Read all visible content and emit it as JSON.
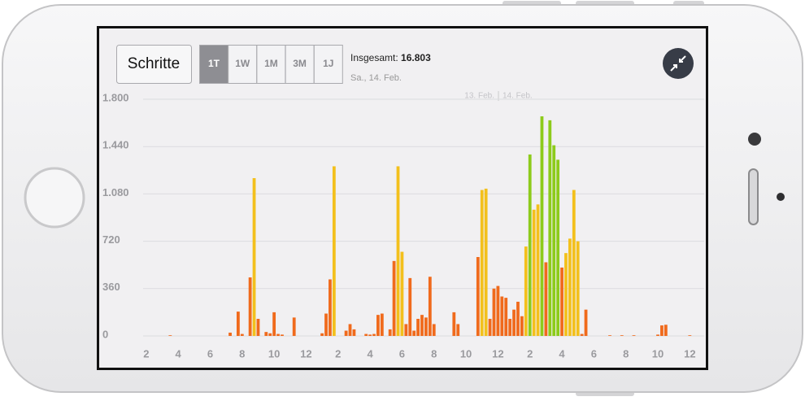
{
  "header": {
    "metric_button": "Schritte",
    "ranges": [
      "1T",
      "1W",
      "1M",
      "3M",
      "1J"
    ],
    "total_label": "Insgesamt:",
    "total_value": "16.803",
    "date": "Sa., 14. Feb."
  },
  "chart_data": {
    "type": "bar",
    "day_labels": [
      "13. Feb.",
      "14. Feb."
    ],
    "x": [
      3.5,
      7.25,
      7.75,
      8.0,
      8.5,
      8.75,
      9.0,
      9.5,
      9.75,
      10.0,
      10.25,
      10.5,
      11.25,
      13.0,
      13.25,
      13.5,
      13.75,
      14.5,
      14.75,
      15.0,
      15.75,
      16.0,
      16.25,
      16.5,
      16.75,
      17.25,
      17.5,
      17.75,
      18.0,
      18.25,
      18.5,
      18.75,
      19.0,
      19.25,
      19.5,
      19.75,
      20.0,
      21.25,
      21.5,
      22.75,
      23.0,
      23.25,
      23.5,
      23.75,
      24.0,
      24.25,
      24.5,
      24.75,
      25.0,
      25.25,
      25.5,
      25.75,
      26.0,
      26.25,
      26.5,
      26.75,
      27.0,
      27.25,
      27.5,
      27.75,
      28.0,
      28.25,
      28.5,
      28.75,
      29.0,
      29.25,
      29.5,
      31.0,
      31.75,
      32.5,
      34.0,
      34.25,
      34.5,
      36.0
    ],
    "values": [
      5,
      25,
      185,
      15,
      445,
      1200,
      130,
      30,
      20,
      180,
      15,
      10,
      140,
      20,
      170,
      430,
      1290,
      40,
      90,
      50,
      15,
      10,
      15,
      160,
      170,
      50,
      570,
      1290,
      640,
      90,
      440,
      40,
      130,
      160,
      140,
      450,
      90,
      180,
      90,
      600,
      1110,
      1120,
      130,
      360,
      380,
      300,
      290,
      130,
      200,
      260,
      150,
      680,
      1380,
      960,
      1000,
      1670,
      560,
      1640,
      1450,
      1340,
      520,
      630,
      740,
      1110,
      720,
      15,
      200,
      5,
      5,
      5,
      10,
      80,
      85,
      5
    ],
    "colors": [
      "#f06a1c",
      "#f06a1c",
      "#f06a1c",
      "#f06a1c",
      "#f06a1c",
      "#f3c01c",
      "#f06a1c",
      "#f06a1c",
      "#f06a1c",
      "#f06a1c",
      "#f06a1c",
      "#f06a1c",
      "#f06a1c",
      "#f06a1c",
      "#f06a1c",
      "#f06a1c",
      "#f3c01c",
      "#f06a1c",
      "#f06a1c",
      "#f06a1c",
      "#f06a1c",
      "#f06a1c",
      "#f06a1c",
      "#f06a1c",
      "#f06a1c",
      "#f06a1c",
      "#f06a1c",
      "#f3c01c",
      "#f3c01c",
      "#f06a1c",
      "#f06a1c",
      "#f06a1c",
      "#f06a1c",
      "#f06a1c",
      "#f06a1c",
      "#f06a1c",
      "#f06a1c",
      "#f06a1c",
      "#f06a1c",
      "#f06a1c",
      "#f3c01c",
      "#f3c01c",
      "#f06a1c",
      "#f06a1c",
      "#f06a1c",
      "#f06a1c",
      "#f06a1c",
      "#f06a1c",
      "#f06a1c",
      "#f06a1c",
      "#f06a1c",
      "#f3c01c",
      "#8dcb1b",
      "#f3c01c",
      "#f3c01c",
      "#8dcb1b",
      "#f06a1c",
      "#8dcb1b",
      "#8dcb1b",
      "#8dcb1b",
      "#f06a1c",
      "#f3c01c",
      "#f3c01c",
      "#f3c01c",
      "#f3c01c",
      "#f06a1c",
      "#f06a1c",
      "#f06a1c",
      "#f06a1c",
      "#f06a1c",
      "#f06a1c",
      "#f06a1c",
      "#f06a1c",
      "#f06a1c"
    ],
    "xlim": [
      1.5,
      37
    ],
    "xticks": [
      2,
      4,
      6,
      8,
      10,
      12,
      {
        "value": 14,
        "label": "2"
      },
      {
        "value": 16,
        "label": "4"
      },
      {
        "value": 18,
        "label": "6"
      },
      {
        "value": 20,
        "label": "8"
      },
      {
        "value": 22,
        "label": "10"
      },
      {
        "value": 24,
        "label": "12"
      },
      {
        "value": 26,
        "label": "2"
      },
      {
        "value": 28,
        "label": "4"
      },
      {
        "value": 30,
        "label": "6"
      },
      {
        "value": 32,
        "label": "8"
      },
      {
        "value": 34,
        "label": "10"
      },
      {
        "value": 36,
        "label": "12"
      }
    ],
    "ylim": [
      0,
      1800
    ],
    "yticks": [
      0,
      360,
      720,
      {
        "value": 1080,
        "label": "1.080"
      },
      {
        "value": 1440,
        "label": "1.440"
      },
      {
        "value": 1800,
        "label": "1.800"
      }
    ],
    "grid": true
  }
}
